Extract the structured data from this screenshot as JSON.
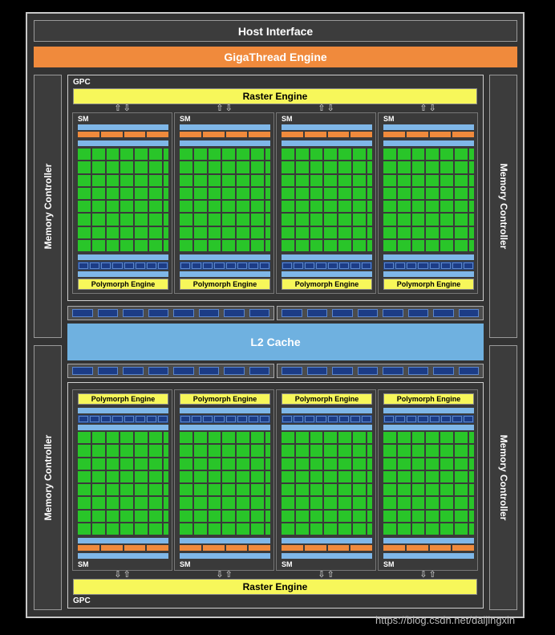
{
  "host_interface": "Host Interface",
  "gigathread": "GigaThread Engine",
  "memory_controller": "Memory Controller",
  "gpc_label": "GPC",
  "raster_engine": "Raster Engine",
  "sm_label": "SM",
  "polymorph_engine": "Polymorph Engine",
  "l2_cache": "L2 Cache",
  "arrow_up": "⇧",
  "arrow_down": "⇩",
  "watermark": "https://blog.csdn.net/daijingxin",
  "colors": {
    "gigathread": "#f08a3c",
    "raster": "#f7f75a",
    "cuda_core": "#29c529",
    "l2": "#6fb1e0",
    "load_store": "#1c3c86"
  }
}
